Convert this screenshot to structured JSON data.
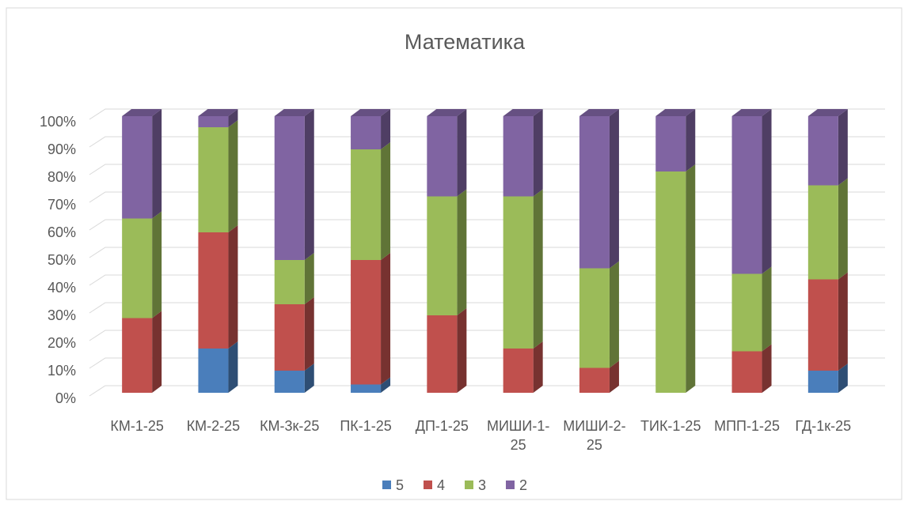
{
  "chart_data": {
    "type": "bar3d_stacked_percent",
    "title": "Математика",
    "categories": [
      "КМ-1-25",
      "КМ-2-25",
      "КМ-3к-25",
      "ПК-1-25",
      "ДП-1-25",
      "МИШИ-1-25",
      "МИШИ-2-25",
      "ТИК-1-25",
      "МПП-1-25",
      "ГД-1к-25"
    ],
    "series": [
      {
        "name": "5",
        "color": "#4a7ebb",
        "values": [
          0,
          16,
          8,
          3,
          0,
          0,
          0,
          0,
          0,
          8
        ]
      },
      {
        "name": "4",
        "color": "#c0504d",
        "values": [
          27,
          42,
          24,
          45,
          28,
          16,
          9,
          0,
          15,
          33
        ]
      },
      {
        "name": "3",
        "color": "#9bbb59",
        "values": [
          36,
          38,
          16,
          40,
          43,
          55,
          36,
          80,
          28,
          34
        ]
      },
      {
        "name": "2",
        "color": "#8064a2",
        "values": [
          37,
          4,
          52,
          12,
          29,
          29,
          55,
          20,
          57,
          25
        ]
      }
    ],
    "ylim": [
      0,
      100
    ],
    "yticks": [
      {
        "value": 0,
        "label": "0%"
      },
      {
        "value": 10,
        "label": "10%"
      },
      {
        "value": 20,
        "label": "20%"
      },
      {
        "value": 30,
        "label": "30%"
      },
      {
        "value": 40,
        "label": "40%"
      },
      {
        "value": 50,
        "label": "50%"
      },
      {
        "value": 60,
        "label": "60%"
      },
      {
        "value": 70,
        "label": "70%"
      },
      {
        "value": 80,
        "label": "80%"
      },
      {
        "value": 90,
        "label": "90%"
      },
      {
        "value": 100,
        "label": "100%"
      }
    ],
    "grid": true,
    "legend": "bottom"
  }
}
